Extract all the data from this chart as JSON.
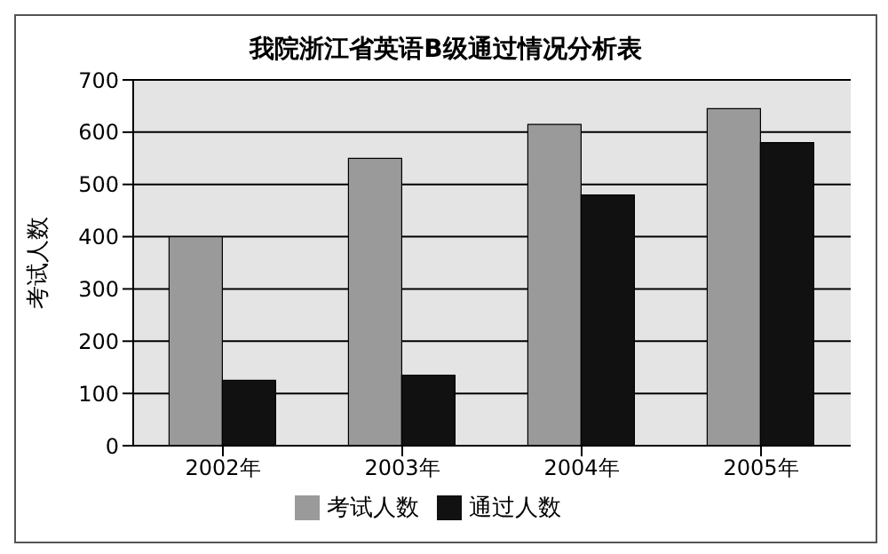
{
  "chart_data": {
    "type": "bar",
    "title": "我院浙江省英语B级通过情况分析表",
    "ylabel": "考试人数",
    "categories": [
      "2002年",
      "2003年",
      "2004年",
      "2005年"
    ],
    "series": [
      {
        "name": "考试人数",
        "color": "#9a9a9a",
        "values": [
          400,
          550,
          615,
          645
        ]
      },
      {
        "name": "通过人数",
        "color": "#111111",
        "values": [
          125,
          135,
          480,
          580
        ]
      }
    ],
    "ylim": [
      0,
      700
    ],
    "yticks": [
      0,
      100,
      200,
      300,
      400,
      500,
      600,
      700
    ],
    "grid": "y",
    "legend": "bottom"
  }
}
